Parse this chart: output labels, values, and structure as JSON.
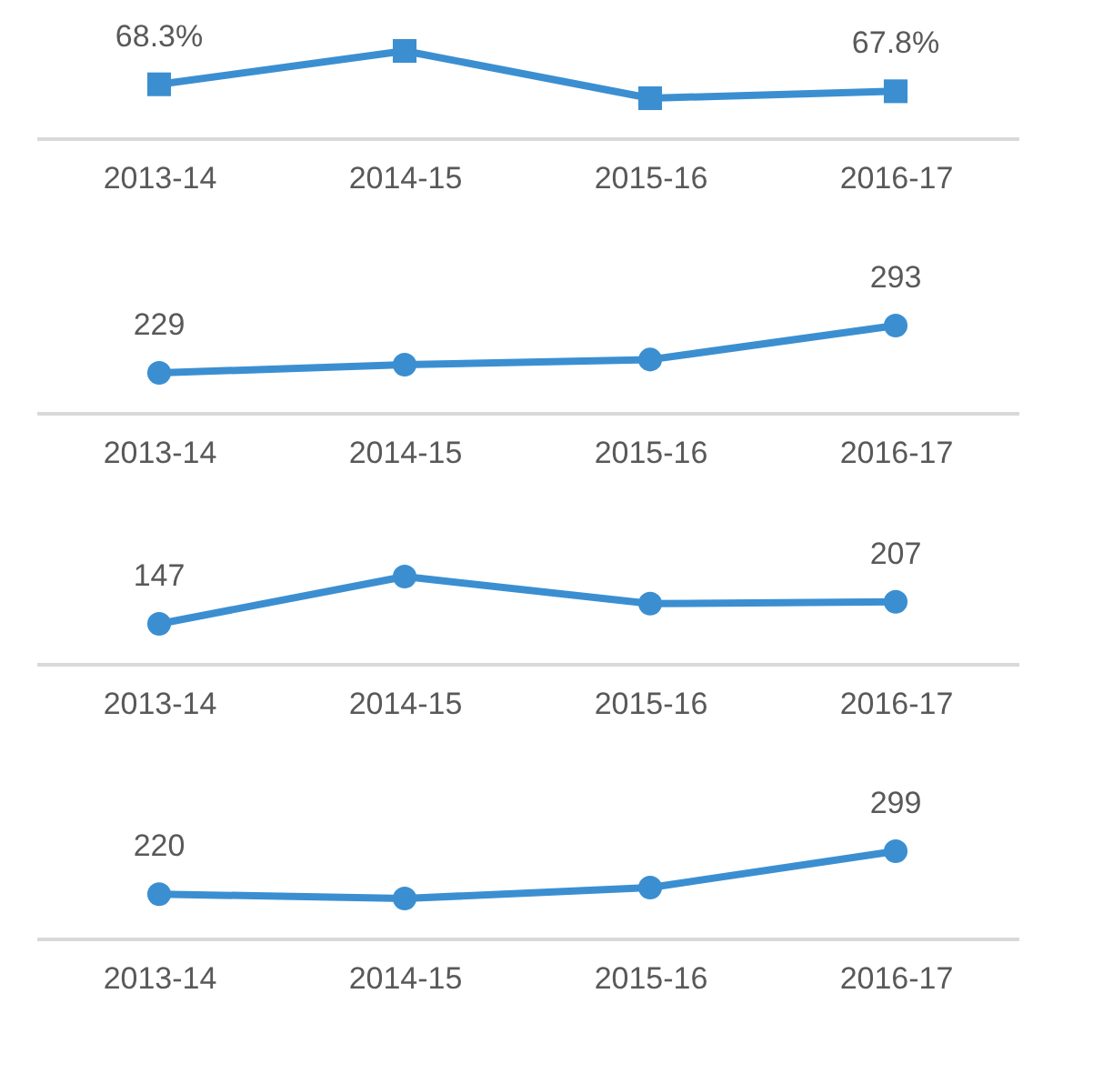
{
  "chart_data": [
    {
      "type": "line",
      "tick_labels": "x",
      "marker": "square",
      "categories": [
        "2013-14",
        "2014-15",
        "2015-16",
        "2016-17"
      ],
      "series": [
        {
          "color": "#3b8fd1",
          "values": [
            68.3,
            70.7,
            67.3,
            67.8
          ],
          "value_labels": [
            "68.3%",
            null,
            null,
            "67.8%"
          ]
        }
      ]
    },
    {
      "type": "line",
      "tick_labels": "x",
      "marker": "circle",
      "categories": [
        "2013-14",
        "2014-15",
        "2015-16",
        "2016-17"
      ],
      "series": [
        {
          "color": "#3b8fd1",
          "values": [
            229,
            240,
            247,
            293
          ],
          "value_labels": [
            "229",
            null,
            null,
            "293"
          ]
        }
      ]
    },
    {
      "type": "line",
      "tick_labels": "x",
      "marker": "circle",
      "categories": [
        "2013-14",
        "2014-15",
        "2015-16",
        "2016-17"
      ],
      "series": [
        {
          "color": "#3b8fd1",
          "values": [
            147,
            276,
            202,
            207
          ],
          "value_labels": [
            "147",
            null,
            null,
            "207"
          ]
        }
      ]
    },
    {
      "type": "line",
      "tick_labels": "x",
      "marker": "circle",
      "categories": [
        "2013-14",
        "2014-15",
        "2015-16",
        "2016-17"
      ],
      "series": [
        {
          "color": "#3b8fd1",
          "values": [
            220,
            212,
            232,
            299
          ],
          "value_labels": [
            "220",
            null,
            null,
            "299"
          ]
        }
      ]
    }
  ]
}
